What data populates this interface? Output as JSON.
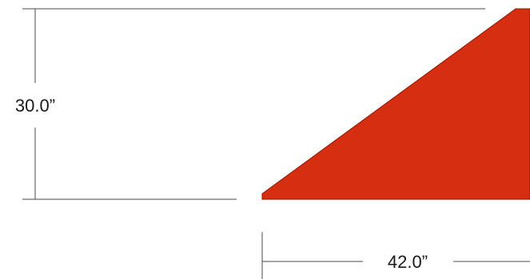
{
  "diagram": {
    "height_dimension": "30.0”",
    "width_dimension": "42.0”"
  },
  "colors": {
    "shape_fill": "#d62e10",
    "shape_stroke": "#8a1a08",
    "dimension_line": "#4a4a4a",
    "text": "#1a1a1a"
  }
}
